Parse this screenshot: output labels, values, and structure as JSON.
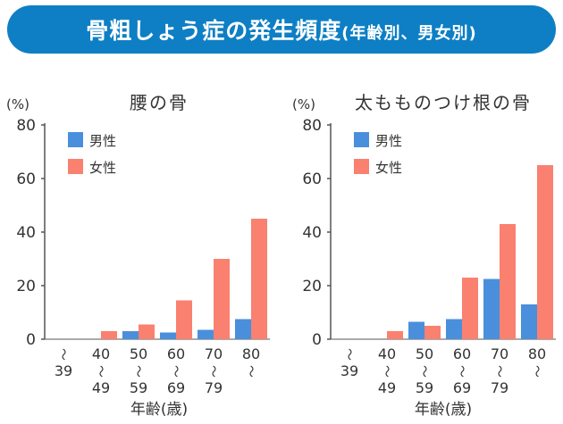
{
  "header": {
    "title": "骨粗しょう症の発生頻度",
    "subtitle": "(年齢別、男女別)",
    "color": "#0e7fc4"
  },
  "colors": {
    "male": "#4a8fdc",
    "female": "#fa8070",
    "axis": "#555555"
  },
  "chart_data": [
    {
      "type": "bar",
      "title": "腰の骨",
      "unit_label": "(%)",
      "xlabel": "年齢(歳)",
      "ylim": [
        0,
        80
      ],
      "yticks": [
        "0",
        "20",
        "40",
        "60",
        "80"
      ],
      "categories": [
        "〜39",
        "40〜49",
        "50〜59",
        "60〜69",
        "70〜79",
        "80〜"
      ],
      "tick_labels": [
        [
          "〜",
          "39"
        ],
        [
          "40",
          "〜",
          "49"
        ],
        [
          "50",
          "〜",
          "59"
        ],
        [
          "60",
          "〜",
          "69"
        ],
        [
          "70",
          "〜",
          "79"
        ],
        [
          "80",
          "〜"
        ]
      ],
      "legend_position": "top-left",
      "series": [
        {
          "name": "男性",
          "values": [
            0,
            0,
            3,
            2.5,
            3.5,
            7.5
          ]
        },
        {
          "name": "女性",
          "values": [
            0,
            3,
            5.5,
            14.5,
            30,
            45
          ]
        }
      ]
    },
    {
      "type": "bar",
      "title": "太もものつけ根の骨",
      "unit_label": "(%)",
      "xlabel": "年齢(歳)",
      "ylim": [
        0,
        80
      ],
      "yticks": [
        "0",
        "20",
        "40",
        "60",
        "80"
      ],
      "categories": [
        "〜39",
        "40〜49",
        "50〜59",
        "60〜69",
        "70〜79",
        "80〜"
      ],
      "tick_labels": [
        [
          "〜",
          "39"
        ],
        [
          "40",
          "〜",
          "49"
        ],
        [
          "50",
          "〜",
          "59"
        ],
        [
          "60",
          "〜",
          "69"
        ],
        [
          "70",
          "〜",
          "79"
        ],
        [
          "80",
          "〜"
        ]
      ],
      "legend_position": "top-left",
      "series": [
        {
          "name": "男性",
          "values": [
            0,
            0,
            6.5,
            7.5,
            22.5,
            13
          ]
        },
        {
          "name": "女性",
          "values": [
            0,
            3,
            5,
            23,
            43,
            65
          ]
        }
      ]
    }
  ]
}
